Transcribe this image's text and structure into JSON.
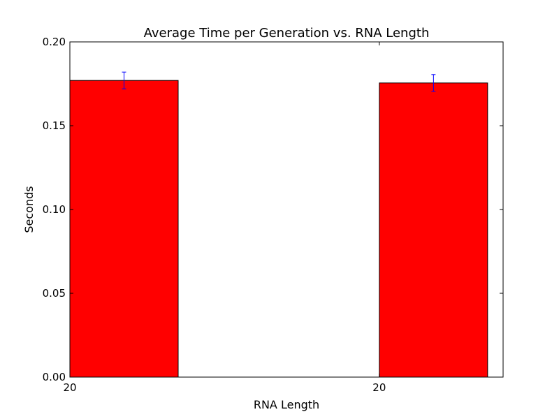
{
  "chart_data": {
    "type": "bar",
    "title": "Average Time per Generation vs. RNA Length",
    "xlabel": "RNA Length",
    "ylabel": "Seconds",
    "categories": [
      "20",
      "20"
    ],
    "x_ticks": [
      "20",
      "20"
    ],
    "values": [
      0.177,
      0.1755
    ],
    "errors": [
      0.005,
      0.005
    ],
    "ylim": [
      0,
      0.2
    ],
    "y_ticks": [
      0.0,
      0.05,
      0.1,
      0.15,
      0.2
    ],
    "y_tick_labels": [
      "0.00",
      "0.05",
      "0.10",
      "0.15",
      "0.20"
    ],
    "grid": false,
    "legend": "none",
    "colors": {
      "bar": "#ff0000",
      "bar_edge": "#000000",
      "errorbar": "#0000ff"
    }
  }
}
